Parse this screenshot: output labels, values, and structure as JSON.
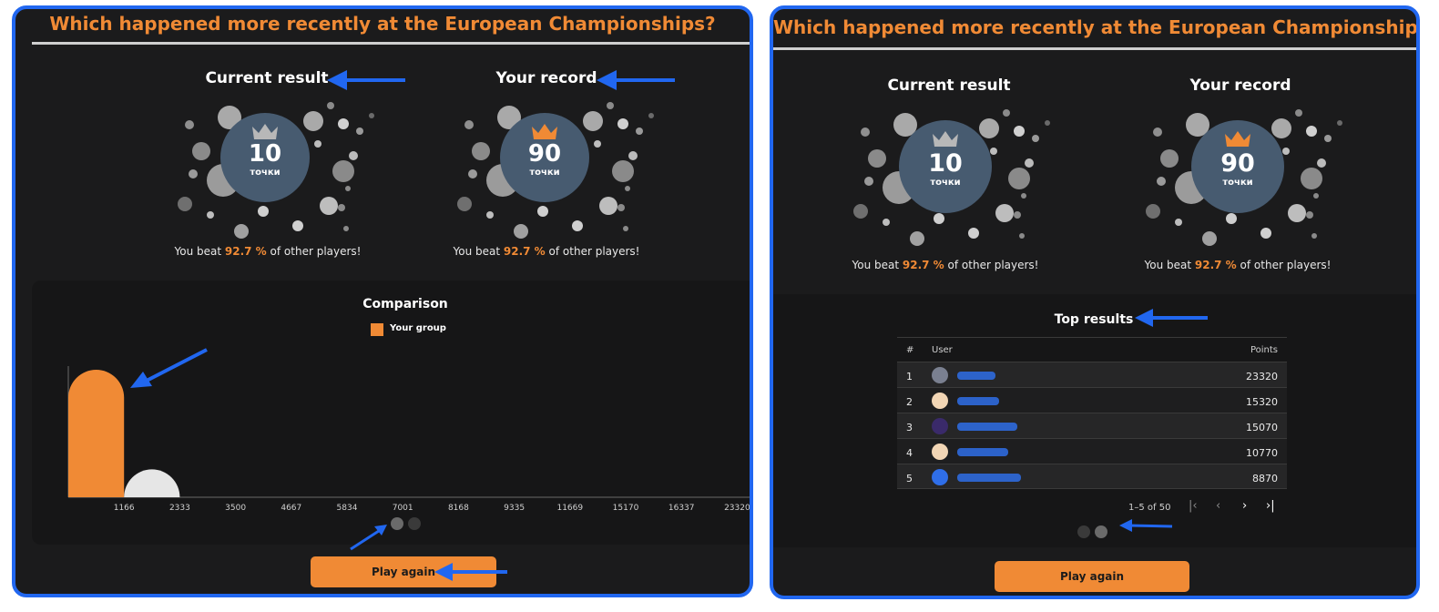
{
  "left_panel": {
    "title": "Which happened more recently at the European Championships?",
    "current": {
      "heading": "Current result",
      "value": "10",
      "unit": "точки",
      "beat_prefix": "You beat",
      "beat_pct": "92.7 %",
      "beat_suffix": "of other players!"
    },
    "record": {
      "heading": "Your record",
      "value": "90",
      "unit": "точки",
      "beat_prefix": "You beat",
      "beat_pct": "92.7 %",
      "beat_suffix": "of other players!"
    },
    "comparison": {
      "title": "Comparison",
      "legend": "Your group"
    },
    "play_again": "Play again"
  },
  "chart_data": {
    "type": "bar",
    "title": "Comparison",
    "categories": [
      "0-1166",
      "1166-2333",
      "2333-3500",
      "3500-4667",
      "4667-5834",
      "5834-7001",
      "7001-8168",
      "8168-9335",
      "9335-11669",
      "11669-15170",
      "15170-16337",
      "16337-23320"
    ],
    "x_ticks": [
      "1166",
      "2333",
      "3500",
      "4667",
      "5834",
      "7001",
      "8168",
      "9335",
      "11669",
      "15170",
      "16337",
      "23320"
    ],
    "series": [
      {
        "name": "Your group",
        "values": [
          100,
          6,
          0,
          0,
          0,
          0,
          0,
          0,
          0,
          0,
          0,
          0
        ]
      }
    ],
    "colors": {
      "your_group": "#f08a35",
      "other": "#e6e6e6"
    },
    "legend_position": "top-center"
  },
  "right_panel": {
    "title": "Which happened more recently at the European Championships?",
    "current": {
      "heading": "Current result",
      "value": "10",
      "unit": "точки",
      "beat_prefix": "You beat",
      "beat_pct": "92.7 %",
      "beat_suffix": "of other players!"
    },
    "record": {
      "heading": "Your record",
      "value": "90",
      "unit": "точки",
      "beat_prefix": "You beat",
      "beat_pct": "92.7 %",
      "beat_suffix": "of other players!"
    },
    "top_results": {
      "title": "Top results",
      "columns": {
        "rank": "#",
        "user": "User",
        "points": "Points"
      },
      "rows": [
        {
          "rank": "1",
          "points": "23320"
        },
        {
          "rank": "2",
          "points": "15320"
        },
        {
          "rank": "3",
          "points": "15070"
        },
        {
          "rank": "4",
          "points": "10770"
        },
        {
          "rank": "5",
          "points": "8870"
        }
      ],
      "pagination": "1–5 of 50"
    },
    "play_again": "Play again"
  },
  "icons": {
    "crown_current": "crown-icon-grey",
    "crown_record": "crown-icon-orange",
    "first_page": "first-page-icon",
    "prev_page": "chevron-left-icon",
    "next_page": "chevron-right-icon",
    "last_page": "last-page-icon"
  },
  "colors": {
    "accent": "#f08a35",
    "panel_bg": "#1b1b1c",
    "annotation_arrow": "#2167f0",
    "score_disc": "#475b70"
  }
}
